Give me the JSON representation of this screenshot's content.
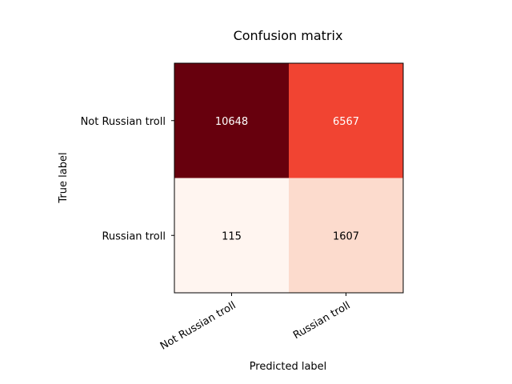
{
  "chart_data": {
    "type": "heatmap",
    "title": "Confusion matrix",
    "xlabel": "Predicted label",
    "ylabel": "True label",
    "x_categories": [
      "Not Russian troll",
      "Russian troll"
    ],
    "y_categories": [
      "Not Russian troll",
      "Russian troll"
    ],
    "values": [
      [
        10648,
        6567
      ],
      [
        115,
        1607
      ]
    ],
    "colormap": "Reds",
    "colors": {
      "cell_0_0": "#67000d",
      "cell_0_1": "#f14432",
      "cell_1_0": "#fff5f0",
      "cell_1_1": "#fcdbcd",
      "text_light": "#ffffff",
      "text_dark": "#000000"
    },
    "grid": false,
    "legend": "none"
  }
}
